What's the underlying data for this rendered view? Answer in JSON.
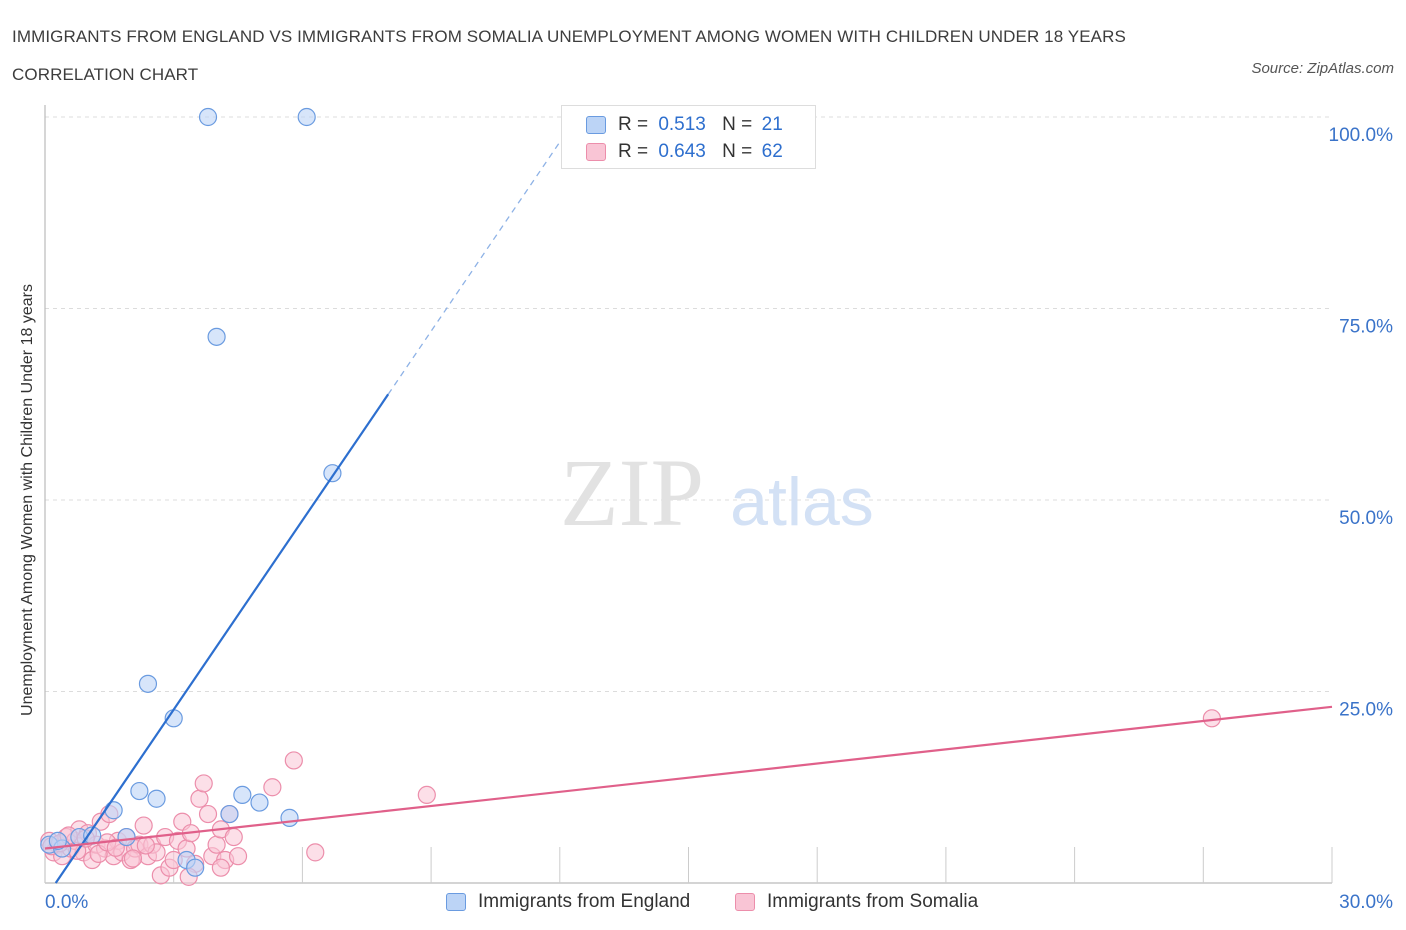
{
  "title": "IMMIGRANTS FROM ENGLAND VS IMMIGRANTS FROM SOMALIA UNEMPLOYMENT AMONG WOMEN WITH CHILDREN UNDER 18 YEARS CORRELATION CHART",
  "source": "Source: ZipAtlas.com",
  "watermark": {
    "zip": "ZIP",
    "atlas": "atlas"
  },
  "legend": {
    "r_label": "R =",
    "n_label": "N =",
    "england": {
      "r": "0.513",
      "n": "21"
    },
    "somalia": {
      "r": "0.643",
      "n": "62"
    }
  },
  "bottom_legend": {
    "england": "Immigrants from England",
    "somalia": "Immigrants from Somalia"
  },
  "colors": {
    "england_fill": "#bcd4f6",
    "england_stroke": "#6a9be0",
    "england_line": "#2d6fcf",
    "somalia_fill": "#f9c5d5",
    "somalia_stroke": "#ec8eab",
    "somalia_line": "#e0608a",
    "tick_label": "#3a73c9",
    "grid": "#dcdcdc"
  },
  "chart_data": {
    "type": "scatter",
    "title": "IMMIGRANTS FROM ENGLAND VS IMMIGRANTS FROM SOMALIA UNEMPLOYMENT AMONG WOMEN WITH CHILDREN UNDER 18 YEARS CORRELATION CHART",
    "xlabel": "",
    "ylabel": "Unemployment Among Women with Children Under 18 years",
    "xlim": [
      0,
      30
    ],
    "ylim": [
      0,
      100
    ],
    "x_tick_labels": [
      {
        "value": 0,
        "label": "0.0%"
      },
      {
        "value": 30,
        "label": "30.0%"
      }
    ],
    "y_tick_labels": [
      {
        "value": 100,
        "label": "100.0%"
      },
      {
        "value": 75,
        "label": "75.0%"
      },
      {
        "value": 50,
        "label": "50.0%"
      },
      {
        "value": 25,
        "label": "25.0%"
      }
    ],
    "grid": true,
    "legend_position": "top-center",
    "series": [
      {
        "name": "Immigrants from England",
        "color": "england",
        "points": [
          [
            0.1,
            5.0
          ],
          [
            0.4,
            4.5
          ],
          [
            0.8,
            6.0
          ],
          [
            1.1,
            6.2
          ],
          [
            1.6,
            9.5
          ],
          [
            1.9,
            6.0
          ],
          [
            2.2,
            12.0
          ],
          [
            2.4,
            26.0
          ],
          [
            2.6,
            11.0
          ],
          [
            3.0,
            21.5
          ],
          [
            3.3,
            3.0
          ],
          [
            3.5,
            2.0
          ],
          [
            3.8,
            100.0
          ],
          [
            4.0,
            71.3
          ],
          [
            4.3,
            9.0
          ],
          [
            4.6,
            11.5
          ],
          [
            5.0,
            10.5
          ],
          [
            5.7,
            8.5
          ],
          [
            6.1,
            100.0
          ],
          [
            6.7,
            53.5
          ],
          [
            0.3,
            5.5
          ]
        ],
        "trend": {
          "x0": 0.25,
          "y0": 0.0,
          "x1": 8.0,
          "y1": 63.8,
          "dash_to_x": 12.6
        }
      },
      {
        "name": "Immigrants from Somalia",
        "color": "somalia",
        "points": [
          [
            0.1,
            5.5
          ],
          [
            0.2,
            4.0
          ],
          [
            0.3,
            5.0
          ],
          [
            0.4,
            3.5
          ],
          [
            0.5,
            6.0
          ],
          [
            0.6,
            4.5
          ],
          [
            0.7,
            5.5
          ],
          [
            0.8,
            7.0
          ],
          [
            0.9,
            4.0
          ],
          [
            1.0,
            6.5
          ],
          [
            1.1,
            3.0
          ],
          [
            1.2,
            5.0
          ],
          [
            1.3,
            8.0
          ],
          [
            1.4,
            4.5
          ],
          [
            1.5,
            9.0
          ],
          [
            1.6,
            3.5
          ],
          [
            1.7,
            5.5
          ],
          [
            1.8,
            4.0
          ],
          [
            1.9,
            6.0
          ],
          [
            2.0,
            3.0
          ],
          [
            2.1,
            4.5
          ],
          [
            2.2,
            5.0
          ],
          [
            2.3,
            7.5
          ],
          [
            2.4,
            3.5
          ],
          [
            2.5,
            5.0
          ],
          [
            2.6,
            4.0
          ],
          [
            2.7,
            1.0
          ],
          [
            2.8,
            6.0
          ],
          [
            2.9,
            2.0
          ],
          [
            3.0,
            3.0
          ],
          [
            3.1,
            5.5
          ],
          [
            3.2,
            8.0
          ],
          [
            3.3,
            4.5
          ],
          [
            3.4,
            6.5
          ],
          [
            3.5,
            2.5
          ],
          [
            3.6,
            11.0
          ],
          [
            3.7,
            13.0
          ],
          [
            3.8,
            9.0
          ],
          [
            3.9,
            3.5
          ],
          [
            4.0,
            5.0
          ],
          [
            4.1,
            7.0
          ],
          [
            4.2,
            3.0
          ],
          [
            4.3,
            9.0
          ],
          [
            4.4,
            6.0
          ],
          [
            4.5,
            3.5
          ],
          [
            0.15,
            4.8
          ],
          [
            0.35,
            5.2
          ],
          [
            0.55,
            6.2
          ],
          [
            0.75,
            4.2
          ],
          [
            0.95,
            5.8
          ],
          [
            1.25,
            3.8
          ],
          [
            1.45,
            5.3
          ],
          [
            1.65,
            4.6
          ],
          [
            2.05,
            3.2
          ],
          [
            2.35,
            4.9
          ],
          [
            5.3,
            12.5
          ],
          [
            5.8,
            16.0
          ],
          [
            6.3,
            4.0
          ],
          [
            8.9,
            11.5
          ],
          [
            3.35,
            0.8
          ],
          [
            27.2,
            21.5
          ],
          [
            4.1,
            2.0
          ]
        ],
        "trend": {
          "x0": 0.0,
          "y0": 4.5,
          "x1": 30.0,
          "y1": 23.0
        }
      }
    ]
  },
  "y_axis_title": "Unemployment Among Women with Children Under 18 years"
}
